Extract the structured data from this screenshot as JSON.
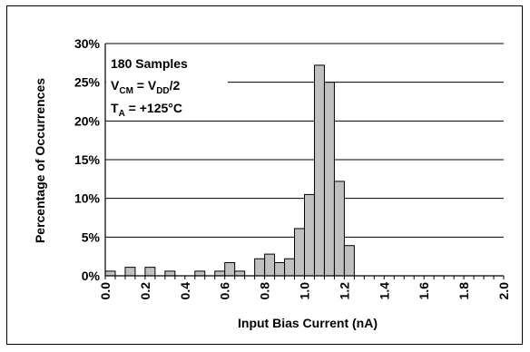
{
  "chart_data": {
    "type": "bar",
    "xlabel": "Input Bias Current (nA)",
    "ylabel": "Percentage of Occurrences",
    "xlim": [
      0.0,
      2.0
    ],
    "ylim": [
      0,
      30
    ],
    "bin_width": 0.05,
    "x_ticks": [
      "0.0",
      "0.2",
      "0.4",
      "0.6",
      "0.8",
      "1.0",
      "1.2",
      "1.4",
      "1.6",
      "1.8",
      "2.0"
    ],
    "y_ticks": [
      "0%",
      "5%",
      "10%",
      "15%",
      "20%",
      "25%",
      "30%"
    ],
    "grid": true,
    "bar_color": "#c0c0c0",
    "x": [
      0.0,
      0.1,
      0.2,
      0.3,
      0.45,
      0.55,
      0.6,
      0.65,
      0.75,
      0.8,
      0.85,
      0.9,
      0.95,
      1.0,
      1.05,
      1.1,
      1.15,
      1.2
    ],
    "values": [
      0.6,
      1.1,
      1.1,
      0.6,
      0.6,
      0.6,
      1.7,
      0.6,
      2.2,
      2.8,
      1.7,
      2.2,
      6.1,
      10.5,
      27.2,
      25.0,
      12.2,
      3.9
    ],
    "annotations": {
      "samples": "180 Samples",
      "vcm": {
        "sym": "V",
        "sub": "CM",
        "mid": " = V",
        "sub2": "DD",
        "end": "/2"
      },
      "ta": {
        "sym": "T",
        "sub": "A",
        "end": " = +125°C"
      }
    }
  }
}
